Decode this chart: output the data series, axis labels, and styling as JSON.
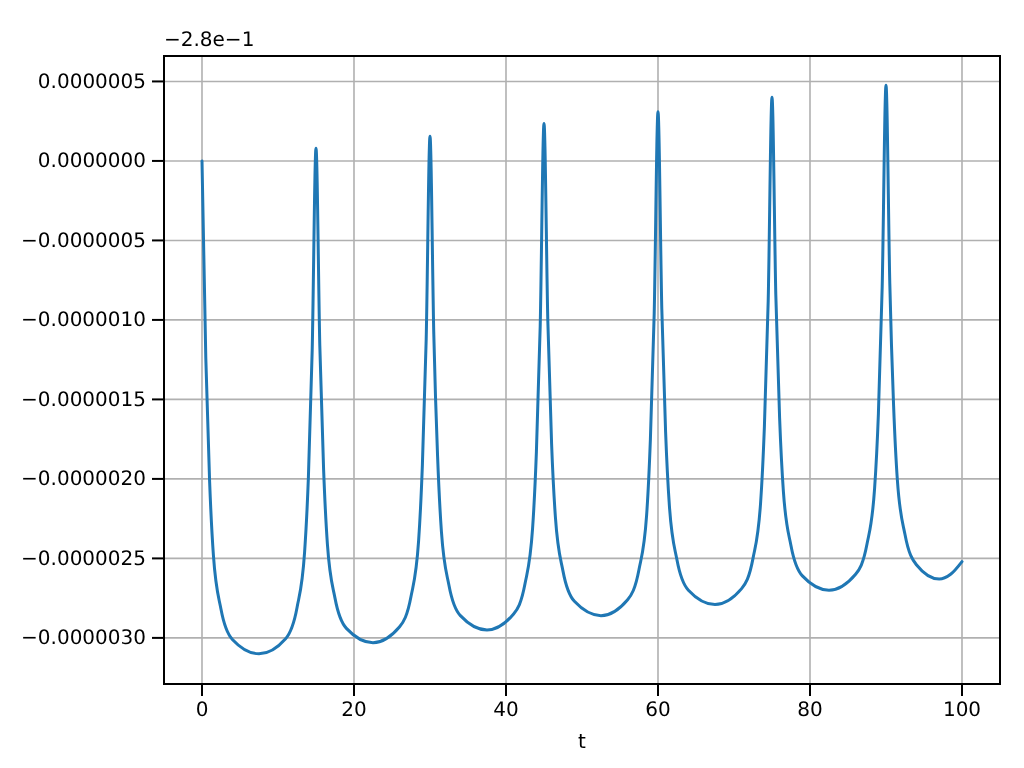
{
  "chart_data": {
    "type": "line",
    "xlabel": "t",
    "annotations": [
      "−2.8e−1"
    ],
    "grid": true,
    "xlim": [
      -5,
      105
    ],
    "xticks": [
      0,
      20,
      40,
      60,
      80,
      100
    ],
    "ylim": [
      -3.29e-06,
      6.6e-07
    ],
    "yticks": [
      {
        "value": 5e-07,
        "label": "0.0000005"
      },
      {
        "value": 0,
        "label": "0.0000000"
      },
      {
        "value": -5e-07,
        "label": "−0.0000005"
      },
      {
        "value": -1e-06,
        "label": "−0.0000010"
      },
      {
        "value": -1.5e-06,
        "label": "−0.0000015"
      },
      {
        "value": -2e-06,
        "label": "−0.0000020"
      },
      {
        "value": -2.5e-06,
        "label": "−0.0000025"
      },
      {
        "value": -3e-06,
        "label": "−0.0000030"
      }
    ],
    "series": [
      {
        "color": "#1f77b4",
        "x": [
          0,
          0.5,
          1,
          1.5,
          2.5,
          4,
          7.5,
          11,
          12.5,
          13.5,
          14,
          14.5,
          15,
          15.5,
          16,
          16.5,
          17.5,
          19,
          22.5,
          26,
          27.5,
          28.5,
          29,
          29.5,
          30,
          30.5,
          31,
          31.5,
          32.5,
          34,
          37.5,
          41,
          42.5,
          43.5,
          44,
          44.5,
          45,
          45.5,
          46,
          46.5,
          47.5,
          49,
          52.5,
          56,
          57.5,
          58.5,
          59,
          59.5,
          60,
          60.5,
          61,
          61.5,
          62.5,
          64,
          67.5,
          71,
          72.5,
          73.5,
          74,
          74.5,
          75,
          75.5,
          76,
          76.5,
          77.5,
          79,
          82.5,
          86,
          87.5,
          88.5,
          89,
          89.5,
          90,
          90.5,
          91,
          91.5,
          92.5,
          94,
          97,
          98.5,
          100
        ],
        "values": [
          0,
          -1.24e-06,
          -2.015e-06,
          -2.48e-06,
          -2.82e-06,
          -3.01e-06,
          -3.1e-06,
          -3.005e-06,
          -2.81e-06,
          -2.46e-06,
          -1.99e-06,
          -1.19e-06,
          8e-08,
          -1.16e-06,
          -1.94e-06,
          -2.41e-06,
          -2.75e-06,
          -2.94e-06,
          -3.03e-06,
          -2.93e-06,
          -2.74e-06,
          -2.39e-06,
          -1.91e-06,
          -1.12e-06,
          1.56e-07,
          -1.09e-06,
          -1.86e-06,
          -2.33e-06,
          -2.67e-06,
          -2.86e-06,
          -2.95e-06,
          -2.85e-06,
          -2.66e-06,
          -2.31e-06,
          -1.83e-06,
          -1.04e-06,
          2.36e-07,
          -1e-06,
          -1.78e-06,
          -2.24e-06,
          -2.58e-06,
          -2.77e-06,
          -2.86e-06,
          -2.76e-06,
          -2.57e-06,
          -2.23e-06,
          -1.75e-06,
          -9.6e-07,
          3.1e-07,
          -9.3e-07,
          -1.705e-06,
          -2.17e-06,
          -2.51e-06,
          -2.7e-06,
          -2.79e-06,
          -2.69e-06,
          -2.5e-06,
          -2.15e-06,
          -1.67e-06,
          -8.8e-07,
          4e-07,
          -8.4e-07,
          -1.615e-06,
          -2.08e-06,
          -2.42e-06,
          -2.61e-06,
          -2.7e-06,
          -2.6e-06,
          -2.41e-06,
          -2.06e-06,
          -1.59e-06,
          -7.9e-07,
          4.76e-07,
          -7.7e-07,
          -1.54e-06,
          -2.01e-06,
          -2.35e-06,
          -2.54e-06,
          -2.63e-06,
          -2.6e-06,
          -2.52e-06
        ]
      }
    ]
  }
}
